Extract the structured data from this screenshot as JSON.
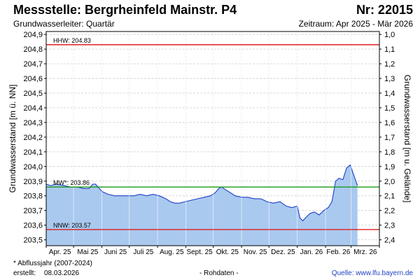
{
  "header": {
    "title": "Messstelle: Bergrheinfeld Mainstr. P4",
    "nr": "Nr: 22015",
    "aquifer": "Grundwasserleiter: Quartär",
    "period": "Zeitraum: Apr 2025 - Mär 2026"
  },
  "footer": {
    "footnote": "* Abflussjahr (2007-2024)",
    "created_label": "erstellt:",
    "created_date": "08.03.2026",
    "raw": "- Rohdaten -",
    "source_label": "Quelle:",
    "source_link": "www.lfu.bayern.de"
  },
  "colors": {
    "area_fill": "#a9c9ef",
    "line": "#1e3ec8",
    "hhw": "#e01e1e",
    "nnw": "#e01e1e",
    "mw": "#1a9a1a",
    "grid": "#cccccc",
    "frame": "#000000"
  },
  "chart_data": {
    "type": "area",
    "ylabel_left": "Grundwasserstand [m ü. NN]",
    "ylabel_right": "Grundwasserstand [m u. Gelände]",
    "ylim": [
      203.46,
      204.92
    ],
    "y_ticks": [
      "203,5",
      "203,6",
      "203,7",
      "203,8",
      "203,9",
      "204,0",
      "204,1",
      "204,2",
      "204,3",
      "204,4",
      "204,5",
      "204,6",
      "204,7",
      "204,8",
      "204,9"
    ],
    "y_tick_values": [
      203.5,
      203.6,
      203.7,
      203.8,
      203.9,
      204.0,
      204.1,
      204.2,
      204.3,
      204.4,
      204.5,
      204.6,
      204.7,
      204.8,
      204.9
    ],
    "y2_ticks": [
      "1,0",
      "1,1",
      "1,2",
      "1,3",
      "1,4",
      "1,5",
      "1,6",
      "1,7",
      "1,8",
      "1,9",
      "2,0",
      "2,1",
      "2,2",
      "2,3",
      "2,4"
    ],
    "y2_tick_values": [
      204.9,
      204.8,
      204.7,
      204.6,
      204.5,
      204.4,
      204.3,
      204.2,
      204.1,
      204.0,
      203.9,
      203.8,
      203.7,
      203.6,
      203.5
    ],
    "x_ticks": [
      "Apr. 25",
      "Mai 25",
      "Juni 25",
      "Juli 25",
      "Aug. 25",
      "Sept. 25",
      "Okt. 25",
      "Nov. 25",
      "Dez. 25",
      "Jan. 26",
      "Feb. 26",
      "Mrz. 26"
    ],
    "xlim": [
      "2025-04-01",
      "2026-04-01"
    ],
    "grid": true,
    "reference_lines": [
      {
        "label": "HHW: 204.83",
        "value": 204.83,
        "color": "#e01e1e"
      },
      {
        "label": "MW*: 203.86",
        "value": 203.86,
        "color": "#1a9a1a"
      },
      {
        "label": "NNW: 203.57",
        "value": 203.57,
        "color": "#e01e1e"
      }
    ],
    "series": [
      {
        "x": [
          "2025-04-01",
          "2025-04-06",
          "2025-04-12",
          "2025-04-20",
          "2025-04-28",
          "2025-05-05",
          "2025-05-12",
          "2025-05-18",
          "2025-05-22",
          "2025-05-25",
          "2025-05-28",
          "2025-06-01",
          "2025-06-08",
          "2025-06-15",
          "2025-06-22",
          "2025-06-29",
          "2025-07-06",
          "2025-07-13",
          "2025-07-20",
          "2025-07-27",
          "2025-08-03",
          "2025-08-10",
          "2025-08-15",
          "2025-08-20",
          "2025-08-25",
          "2025-08-31",
          "2025-09-07",
          "2025-09-14",
          "2025-09-21",
          "2025-09-28",
          "2025-10-03",
          "2025-10-07",
          "2025-10-10",
          "2025-10-15",
          "2025-10-20",
          "2025-10-25",
          "2025-11-01",
          "2025-11-08",
          "2025-11-15",
          "2025-11-22",
          "2025-11-29",
          "2025-12-06",
          "2025-12-13",
          "2025-12-20",
          "2025-12-26",
          "2026-01-01",
          "2026-01-04",
          "2026-01-07",
          "2026-01-10",
          "2026-01-15",
          "2026-01-20",
          "2026-01-25",
          "2026-01-30",
          "2026-02-04",
          "2026-02-08",
          "2026-02-12",
          "2026-02-16",
          "2026-02-20",
          "2026-02-24",
          "2026-02-28",
          "2026-03-04",
          "2026-03-08"
        ],
        "y": [
          203.88,
          203.87,
          203.88,
          203.87,
          203.86,
          203.86,
          203.85,
          203.85,
          203.88,
          203.88,
          203.86,
          203.83,
          203.81,
          203.8,
          203.8,
          203.8,
          203.8,
          203.81,
          203.8,
          203.81,
          203.8,
          203.78,
          203.76,
          203.75,
          203.75,
          203.76,
          203.77,
          203.78,
          203.79,
          203.8,
          203.82,
          203.85,
          203.86,
          203.84,
          203.82,
          203.8,
          203.79,
          203.79,
          203.78,
          203.78,
          203.76,
          203.75,
          203.76,
          203.73,
          203.72,
          203.73,
          203.65,
          203.63,
          203.65,
          203.68,
          203.69,
          203.67,
          203.7,
          203.72,
          203.76,
          203.9,
          203.92,
          203.91,
          203.99,
          204.01,
          203.94,
          203.87
        ]
      }
    ]
  }
}
